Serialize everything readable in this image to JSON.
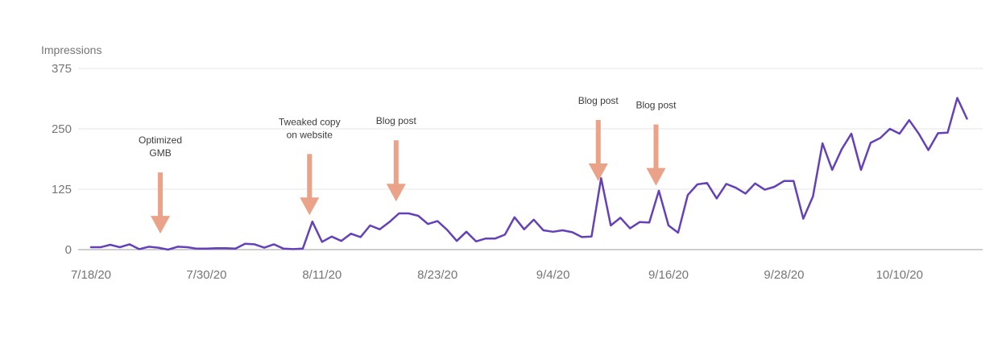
{
  "chart_data": {
    "type": "line",
    "title": "",
    "ylabel": "Impressions",
    "xlabel": "",
    "ylim": [
      0,
      375
    ],
    "y_ticks": [
      "0",
      "125",
      "250",
      "375"
    ],
    "x_tick_labels": [
      "7/18/20",
      "7/30/20",
      "8/11/20",
      "8/23/20",
      "9/4/20",
      "9/16/20",
      "9/28/20",
      "10/10/20"
    ],
    "x_start": "7/18/20",
    "grid": true,
    "line_color": "#6441b8",
    "arrow_color": "#eaa289",
    "series": [
      {
        "name": "",
        "values": [
          5,
          5,
          10,
          5,
          11,
          1,
          6,
          4,
          0,
          6,
          5,
          2,
          2,
          3,
          3,
          2,
          12,
          11,
          4,
          11,
          2,
          1,
          2,
          58,
          16,
          27,
          18,
          33,
          26,
          50,
          42,
          57,
          75,
          75,
          70,
          53,
          59,
          41,
          18,
          37,
          17,
          23,
          23,
          31,
          67,
          42,
          62,
          40,
          37,
          40,
          36,
          26,
          27,
          148,
          50,
          66,
          44,
          57,
          56,
          122,
          50,
          35,
          113,
          135,
          138,
          106,
          136,
          128,
          116,
          137,
          124,
          130,
          142,
          142,
          64,
          110,
          220,
          165,
          208,
          240,
          165,
          221,
          231,
          250,
          240,
          268,
          240,
          206,
          241,
          242,
          314,
          271
        ]
      }
    ],
    "annotations": [
      {
        "lines": [
          "Optimized",
          "GMB"
        ],
        "date_index": 7.2
      },
      {
        "lines": [
          "Tweaked copy",
          "on website"
        ],
        "date_index": 22.7
      },
      {
        "lines": [
          "Blog post"
        ],
        "date_index": 31.7
      },
      {
        "lines": [
          "Blog post"
        ],
        "date_index": 52.7
      },
      {
        "lines": [
          "Blog post"
        ],
        "date_index": 58.7
      }
    ]
  }
}
